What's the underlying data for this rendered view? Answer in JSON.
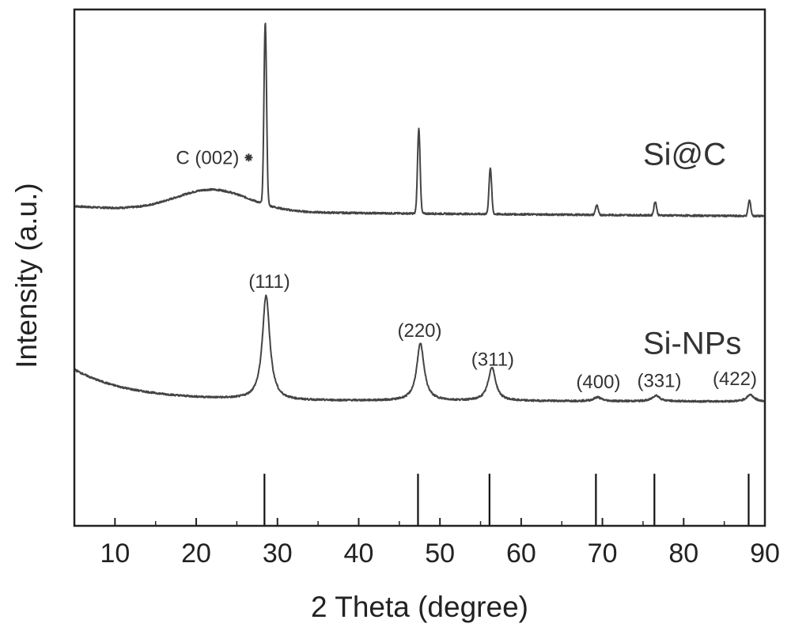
{
  "chart_data": {
    "type": "line",
    "xlabel": "2 Theta (degree)",
    "ylabel": "Intensity (a.u.)",
    "xlim": [
      5,
      90
    ],
    "ylim": [
      -1.25,
      4.0
    ],
    "x_ticks": [
      10,
      20,
      30,
      40,
      50,
      60,
      70,
      80,
      90
    ],
    "yticks_shown": false,
    "grid": false,
    "series": [
      {
        "name": "Si@C",
        "color": "#444444",
        "baseline": 1.95,
        "broad_peaks": [
          {
            "center": 22.0,
            "height": 0.22,
            "width": 4.5
          }
        ],
        "peaks": [
          {
            "center": 28.5,
            "height": 1.85
          },
          {
            "center": 47.4,
            "height": 0.86
          },
          {
            "center": 56.2,
            "height": 0.47
          },
          {
            "center": 69.3,
            "height": 0.1
          },
          {
            "center": 76.5,
            "height": 0.14
          },
          {
            "center": 88.1,
            "height": 0.16
          }
        ]
      },
      {
        "name": "Si-NPs",
        "color": "#444444",
        "baseline": 0.0,
        "peaks": [
          {
            "center": 28.6,
            "height": 1.06
          },
          {
            "center": 47.6,
            "height": 0.58
          },
          {
            "center": 56.4,
            "height": 0.34
          },
          {
            "center": 69.4,
            "height": 0.04
          },
          {
            "center": 76.6,
            "height": 0.06
          },
          {
            "center": 88.2,
            "height": 0.07
          }
        ]
      }
    ],
    "reference_lines": [
      28.4,
      47.3,
      56.1,
      69.2,
      76.4,
      88.0
    ],
    "series_labels": [
      {
        "text": "Si@C",
        "x": 75,
        "y": 2.42
      },
      {
        "text": "Si-NPs",
        "x": 75,
        "y": 0.5
      }
    ],
    "annotations": [
      {
        "text": "C (002)",
        "x": 17.5,
        "y": 2.43,
        "marker": true
      },
      {
        "text": "(111)",
        "x": 29.0,
        "y": 1.17
      },
      {
        "text": "(220)",
        "x": 47.5,
        "y": 0.67
      },
      {
        "text": "(311)",
        "x": 56.5,
        "y": 0.38
      },
      {
        "text": "(400)",
        "x": 69.5,
        "y": 0.15
      },
      {
        "text": "(331)",
        "x": 77.0,
        "y": 0.16
      },
      {
        "text": "(422)",
        "x": 86.3,
        "y": 0.18
      }
    ]
  }
}
